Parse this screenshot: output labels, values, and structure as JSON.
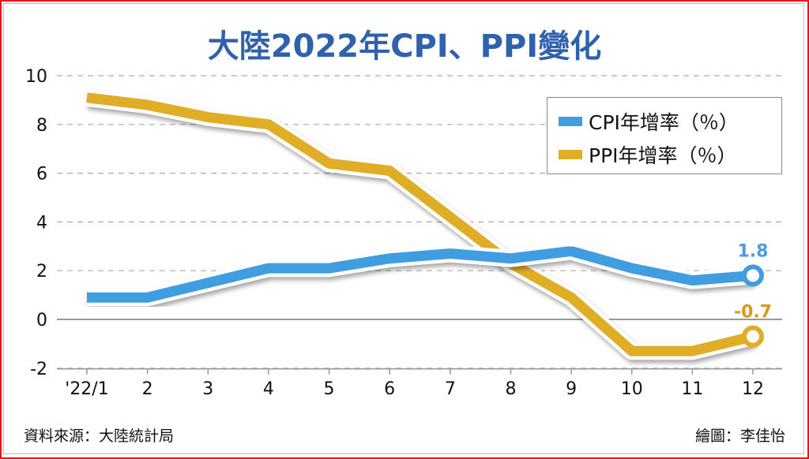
{
  "chart_data": {
    "type": "line",
    "title": "大陸2022年CPI、PPI變化",
    "categories": [
      "'22/1",
      "2",
      "3",
      "4",
      "5",
      "6",
      "7",
      "8",
      "9",
      "10",
      "11",
      "12"
    ],
    "ylim": [
      -2,
      10
    ],
    "yticks": [
      -2,
      0,
      2,
      4,
      6,
      8,
      10
    ],
    "grid": true,
    "legend_position": "top-right",
    "series": [
      {
        "name": "CPI年增率（％）",
        "color": "#3f9de0",
        "values": [
          0.9,
          0.9,
          1.5,
          2.1,
          2.1,
          2.5,
          2.7,
          2.5,
          2.8,
          2.1,
          1.6,
          1.8
        ],
        "end_label": "1.8"
      },
      {
        "name": "PPI年增率（％）",
        "color": "#e0ae25",
        "values": [
          9.1,
          8.8,
          8.3,
          8.0,
          6.4,
          6.1,
          4.2,
          2.3,
          0.9,
          -1.3,
          -1.3,
          -0.7
        ],
        "end_label": "-0.7"
      }
    ]
  },
  "footer": {
    "source": "資料來源：大陸統計局",
    "credit": "繪圖：李佳怡"
  }
}
